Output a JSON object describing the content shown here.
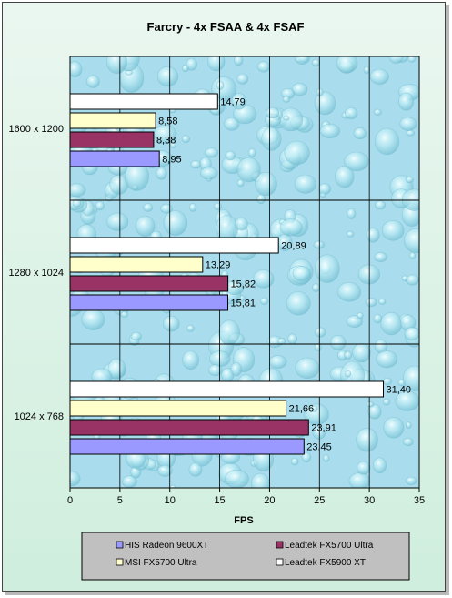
{
  "chart_data": {
    "type": "bar",
    "orientation": "horizontal",
    "title": "Farcry - 4x FSAA & 4x FSAF",
    "xlabel": "FPS",
    "ylabel": "",
    "xlim": [
      0,
      35
    ],
    "xticks": [
      "0",
      "5",
      "10",
      "15",
      "20",
      "25",
      "30",
      "35"
    ],
    "grid": true,
    "legend_position": "bottom",
    "categories": [
      "1600 x 1200",
      "1280 x 1024",
      "1024 x 768"
    ],
    "series": [
      {
        "name": "HIS Radeon 9600XT",
        "color": "#9999ff",
        "values": [
          8.95,
          15.81,
          23.45
        ],
        "labels": [
          "8,95",
          "15,81",
          "23,45"
        ]
      },
      {
        "name": "Leadtek FX5700 Ultra",
        "color": "#993366",
        "values": [
          8.38,
          15.82,
          23.91
        ],
        "labels": [
          "8,38",
          "15,82",
          "23,91"
        ]
      },
      {
        "name": "MSI FX5700 Ultra",
        "color": "#ffffcc",
        "values": [
          8.58,
          13.29,
          21.66
        ],
        "labels": [
          "8,58",
          "13,29",
          "21,66"
        ]
      },
      {
        "name": "Leadtek FX5900 XT",
        "color": "#ffffff",
        "values": [
          14.79,
          20.89,
          31.4
        ],
        "labels": [
          "14,79",
          "20,89",
          "31,40"
        ]
      }
    ]
  }
}
